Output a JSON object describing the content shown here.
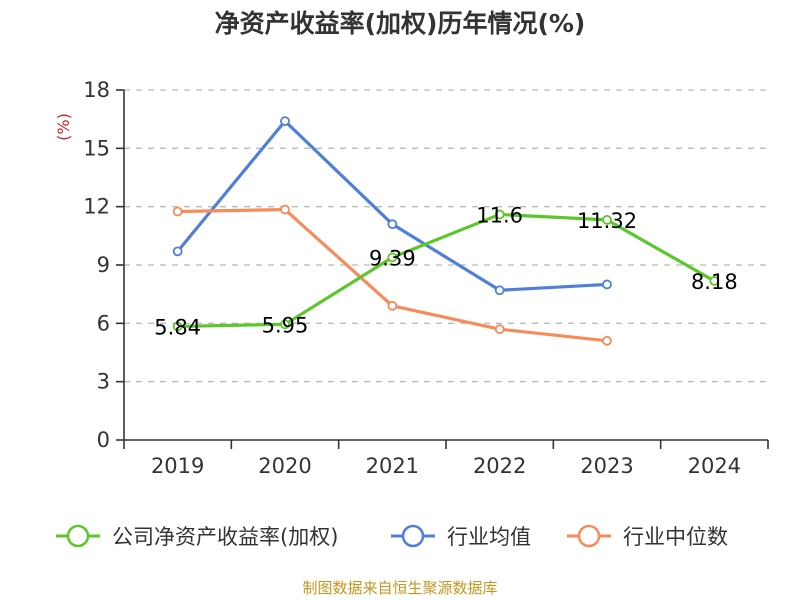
{
  "chart_data": {
    "type": "line",
    "title": "净资产收益率(加权)历年情况(%)",
    "ylabel": "(%)",
    "xlabel": "",
    "categories": [
      "2019",
      "2020",
      "2021",
      "2022",
      "2023",
      "2024"
    ],
    "ylim": [
      0,
      18
    ],
    "yticks": [
      0,
      3,
      6,
      9,
      12,
      15,
      18
    ],
    "grid": true,
    "legend_position": "bottom",
    "series": [
      {
        "name": "公司净资产收益率(加权)",
        "color": "#5cc72a",
        "values": [
          5.84,
          5.95,
          9.39,
          11.6,
          11.32,
          8.18
        ],
        "labels": [
          "5.84",
          "5.95",
          "9.39",
          "11.6",
          "11.32",
          "8.18"
        ]
      },
      {
        "name": "行业均值",
        "color": "#4f7fd8",
        "values": [
          9.7,
          16.4,
          11.1,
          7.7,
          8.0,
          null
        ]
      },
      {
        "name": "行业中位数",
        "color": "#f58c5a",
        "values": [
          11.75,
          11.85,
          6.9,
          5.7,
          5.1,
          null
        ]
      }
    ]
  },
  "source": "制图数据来自恒生聚源数据库",
  "colors": {
    "ylabel": "#d22222",
    "source": "#c8961e"
  }
}
